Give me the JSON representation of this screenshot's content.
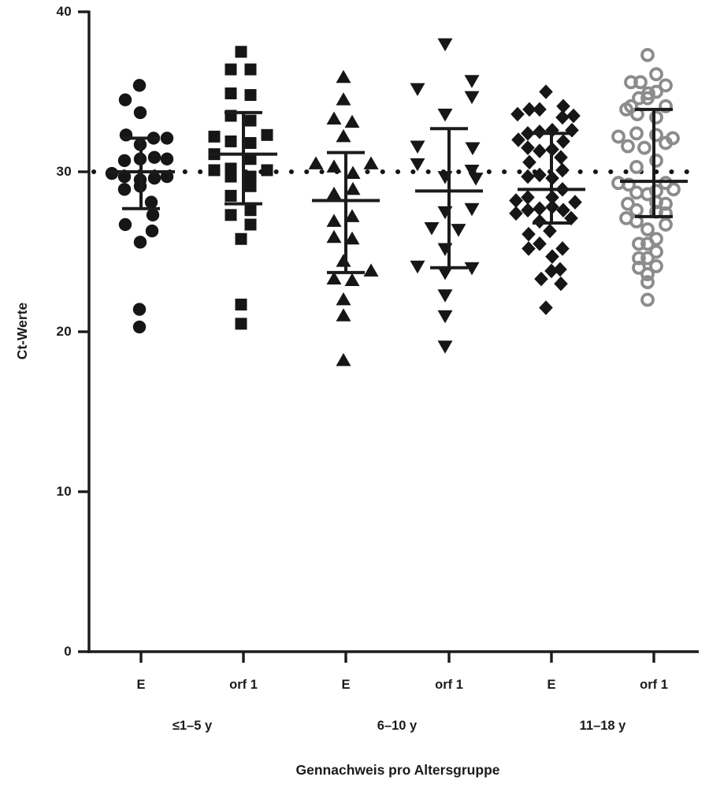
{
  "figure": {
    "background": "#ffffff",
    "axis_color": "#1b1b1b",
    "marker_black": "#161616",
    "marker_gray": "#8c8c8c"
  },
  "chart_data": {
    "type": "scatter",
    "title": "",
    "xlabel": "Gennachweis pro Altersgruppe",
    "ylabel": "Ct-Werte",
    "ylim": [
      0,
      40
    ],
    "yticks": [
      0,
      10,
      20,
      30,
      40
    ],
    "grid": "off",
    "legend": "none",
    "reference_line": {
      "y": 30,
      "style": "dotted",
      "color": "#161616"
    },
    "x_tick_labels": [
      "E",
      "orf 1",
      "E",
      "orf 1",
      "E",
      "orf 1"
    ],
    "age_groups": [
      "≤1–5 y",
      "6–10 y",
      "11–18 y"
    ],
    "series": [
      {
        "gene": "E",
        "age_group": "≤1–5 y",
        "marker": "filled-circle",
        "color": "#161616",
        "error": {
          "mean": 30.0,
          "upper": 32.1,
          "lower": 27.7
        },
        "points": [
          [
            -2,
            35.4
          ],
          [
            -20,
            34.5
          ],
          [
            -1,
            33.7
          ],
          [
            -19,
            32.3
          ],
          [
            16,
            32.1
          ],
          [
            33,
            32.1
          ],
          [
            -1,
            31.7
          ],
          [
            -21,
            30.7
          ],
          [
            -1,
            30.8
          ],
          [
            17,
            30.9
          ],
          [
            33,
            30.8
          ],
          [
            -37,
            29.9
          ],
          [
            -21,
            29.7
          ],
          [
            -1,
            29.5
          ],
          [
            17,
            29.6
          ],
          [
            33,
            29.7
          ],
          [
            -21,
            28.9
          ],
          [
            -1,
            29.1
          ],
          [
            13,
            28.1
          ],
          [
            15,
            27.3
          ],
          [
            -20,
            26.7
          ],
          [
            14,
            26.3
          ],
          [
            -1,
            25.6
          ],
          [
            -2,
            21.4
          ],
          [
            -2,
            20.3
          ]
        ]
      },
      {
        "gene": "orf 1",
        "age_group": "≤1–5 y",
        "marker": "filled-square",
        "color": "#161616",
        "error": {
          "mean": 31.1,
          "upper": 33.7,
          "lower": 28.0
        },
        "points": [
          [
            -3,
            37.5
          ],
          [
            -16,
            36.4
          ],
          [
            9,
            36.4
          ],
          [
            -16,
            34.9
          ],
          [
            9,
            34.8
          ],
          [
            -16,
            33.5
          ],
          [
            9,
            33.2
          ],
          [
            30,
            32.3
          ],
          [
            -37,
            32.2
          ],
          [
            -16,
            31.9
          ],
          [
            9,
            31.8
          ],
          [
            -37,
            31.1
          ],
          [
            9,
            30.8
          ],
          [
            -37,
            30.1
          ],
          [
            -16,
            30.2
          ],
          [
            -16,
            29.7
          ],
          [
            9,
            29.7
          ],
          [
            30,
            30.1
          ],
          [
            9,
            29.1
          ],
          [
            -16,
            28.5
          ],
          [
            9,
            27.6
          ],
          [
            -16,
            27.3
          ],
          [
            9,
            26.7
          ],
          [
            -3,
            25.8
          ],
          [
            -3,
            21.7
          ],
          [
            -3,
            20.5
          ]
        ]
      },
      {
        "gene": "E",
        "age_group": "6–10 y",
        "marker": "triangle-up",
        "color": "#161616",
        "error": {
          "mean": 28.2,
          "upper": 31.2,
          "lower": 23.7
        },
        "points": [
          [
            -3,
            35.9
          ],
          [
            -3,
            34.5
          ],
          [
            -15,
            33.3
          ],
          [
            8,
            33.1
          ],
          [
            -3,
            32.2
          ],
          [
            -38,
            30.5
          ],
          [
            -15,
            30.3
          ],
          [
            32,
            30.5
          ],
          [
            9,
            29.9
          ],
          [
            9,
            28.9
          ],
          [
            -15,
            28.6
          ],
          [
            8,
            27.2
          ],
          [
            -15,
            26.9
          ],
          [
            -15,
            25.9
          ],
          [
            8,
            25.8
          ],
          [
            -3,
            24.4
          ],
          [
            -15,
            23.3
          ],
          [
            8,
            23.2
          ],
          [
            32,
            23.8
          ],
          [
            -3,
            22.0
          ],
          [
            -3,
            21.0
          ],
          [
            -3,
            18.2
          ]
        ]
      },
      {
        "gene": "orf 1",
        "age_group": "6–10 y",
        "marker": "triangle-down",
        "color": "#161616",
        "error": {
          "mean": 28.8,
          "upper": 32.7,
          "lower": 24.0
        },
        "points": [
          [
            -5,
            38.0
          ],
          [
            29,
            35.7
          ],
          [
            -40,
            35.2
          ],
          [
            29,
            34.7
          ],
          [
            -5,
            33.6
          ],
          [
            -40,
            31.6
          ],
          [
            30,
            31.5
          ],
          [
            -40,
            30.5
          ],
          [
            29,
            30.1
          ],
          [
            34,
            29.6
          ],
          [
            -5,
            29.7
          ],
          [
            29,
            27.7
          ],
          [
            -5,
            27.5
          ],
          [
            -22,
            26.5
          ],
          [
            12,
            26.4
          ],
          [
            -5,
            25.2
          ],
          [
            -40,
            24.1
          ],
          [
            29,
            24.0
          ],
          [
            -5,
            23.7
          ],
          [
            -5,
            22.3
          ],
          [
            -5,
            21.0
          ],
          [
            -5,
            19.1
          ]
        ]
      },
      {
        "gene": "E",
        "age_group": "11–18 y",
        "marker": "filled-diamond",
        "color": "#161616",
        "error": {
          "mean": 28.9,
          "upper": 32.4,
          "lower": 26.8
        },
        "points": [
          [
            -7,
            35.0
          ],
          [
            15,
            34.1
          ],
          [
            -43,
            33.6
          ],
          [
            -28,
            33.9
          ],
          [
            -15,
            33.9
          ],
          [
            14,
            33.4
          ],
          [
            28,
            33.5
          ],
          [
            -30,
            32.4
          ],
          [
            -15,
            32.5
          ],
          [
            1,
            32.6
          ],
          [
            26,
            32.6
          ],
          [
            -42,
            32.0
          ],
          [
            15,
            31.9
          ],
          [
            -30,
            31.5
          ],
          [
            -15,
            31.3
          ],
          [
            1,
            31.4
          ],
          [
            -28,
            30.6
          ],
          [
            12,
            30.9
          ],
          [
            -30,
            29.7
          ],
          [
            -15,
            29.8
          ],
          [
            1,
            29.6
          ],
          [
            14,
            30.1
          ],
          [
            -45,
            28.2
          ],
          [
            -30,
            28.4
          ],
          [
            1,
            28.4
          ],
          [
            14,
            28.9
          ],
          [
            30,
            28.1
          ],
          [
            -45,
            27.4
          ],
          [
            -30,
            27.6
          ],
          [
            -15,
            27.7
          ],
          [
            1,
            27.8
          ],
          [
            15,
            27.6
          ],
          [
            25,
            27.1
          ],
          [
            -15,
            26.9
          ],
          [
            -2,
            26.3
          ],
          [
            -29,
            26.1
          ],
          [
            -15,
            25.5
          ],
          [
            -29,
            25.2
          ],
          [
            14,
            25.2
          ],
          [
            1,
            24.7
          ],
          [
            0,
            23.8
          ],
          [
            11,
            23.9
          ],
          [
            -13,
            23.3
          ],
          [
            12,
            23.0
          ],
          [
            -7,
            21.5
          ]
        ]
      },
      {
        "gene": "orf 1",
        "age_group": "11–18 y",
        "marker": "open-circle",
        "color": "#8c8c8c",
        "error": {
          "mean": 29.4,
          "upper": 33.9,
          "lower": 27.2
        },
        "points": [
          [
            -8,
            37.3
          ],
          [
            3,
            36.1
          ],
          [
            -29,
            35.6
          ],
          [
            -17,
            35.6
          ],
          [
            15,
            35.4
          ],
          [
            -7,
            34.9
          ],
          [
            3,
            35.0
          ],
          [
            -19,
            34.6
          ],
          [
            -8,
            34.6
          ],
          [
            -29,
            34.1
          ],
          [
            15,
            34.1
          ],
          [
            -35,
            33.9
          ],
          [
            3,
            33.4
          ],
          [
            -21,
            33.6
          ],
          [
            -45,
            32.2
          ],
          [
            -22,
            32.4
          ],
          [
            3,
            32.3
          ],
          [
            24,
            32.1
          ],
          [
            -33,
            31.6
          ],
          [
            15,
            31.8
          ],
          [
            -12,
            31.5
          ],
          [
            3,
            30.7
          ],
          [
            -22,
            30.3
          ],
          [
            -45,
            29.3
          ],
          [
            -32,
            29.2
          ],
          [
            15,
            29.3
          ],
          [
            25,
            28.9
          ],
          [
            -22,
            28.7
          ],
          [
            -8,
            28.6
          ],
          [
            3,
            28.8
          ],
          [
            -33,
            28.0
          ],
          [
            3,
            28.1
          ],
          [
            15,
            28.0
          ],
          [
            -22,
            27.6
          ],
          [
            3,
            27.5
          ],
          [
            15,
            27.4
          ],
          [
            -35,
            27.1
          ],
          [
            -22,
            26.9
          ],
          [
            15,
            26.7
          ],
          [
            -8,
            26.4
          ],
          [
            3,
            25.8
          ],
          [
            -19,
            25.5
          ],
          [
            -8,
            25.5
          ],
          [
            3,
            25.0
          ],
          [
            -19,
            24.6
          ],
          [
            -8,
            24.6
          ],
          [
            3,
            24.1
          ],
          [
            -19,
            24.0
          ],
          [
            -8,
            23.6
          ],
          [
            -8,
            23.1
          ],
          [
            -8,
            22.0
          ]
        ]
      }
    ]
  }
}
